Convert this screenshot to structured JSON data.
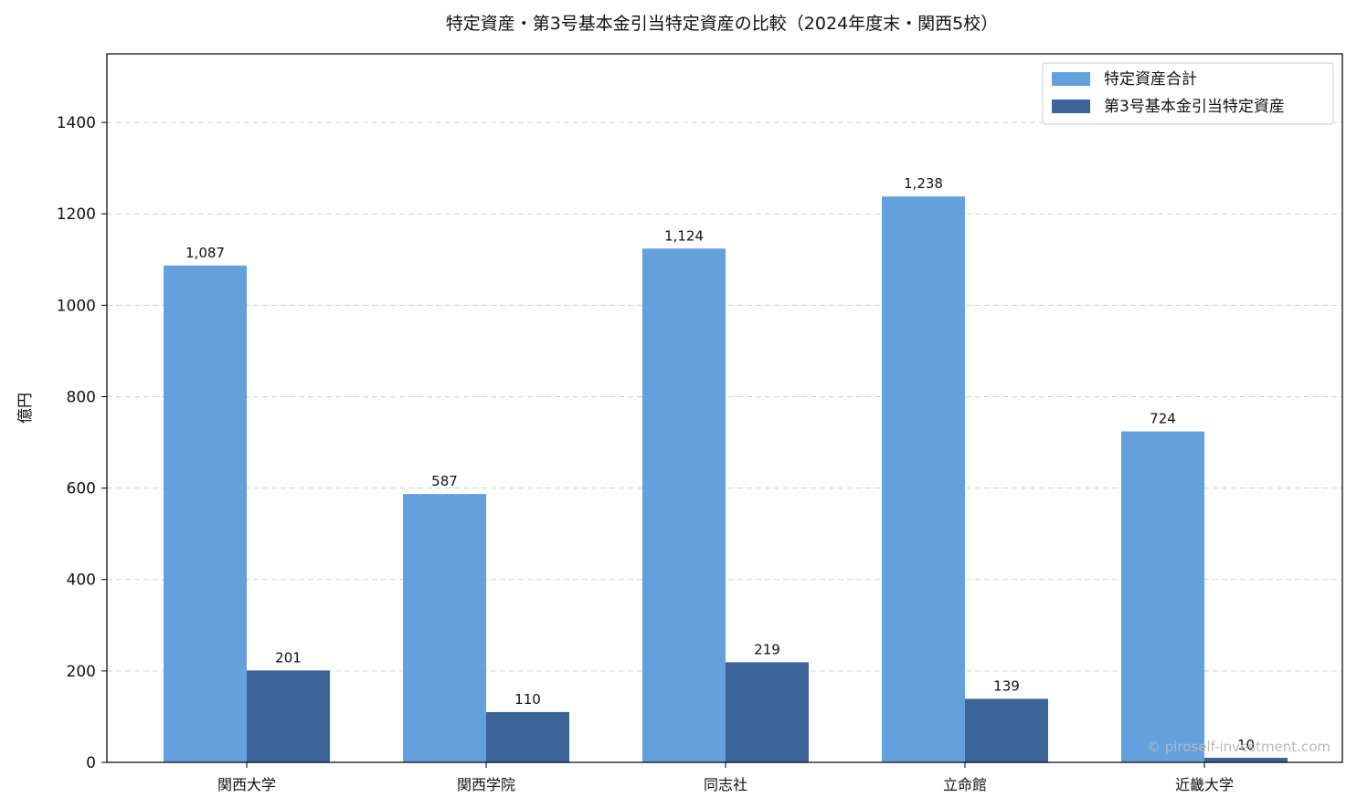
{
  "chart_data": {
    "type": "bar",
    "title": "特定資産・第3号基本金引当特定資産の比較（2024年度末・関西5校）",
    "xlabel": "",
    "ylabel": "億円",
    "ylim": [
      0,
      1550
    ],
    "yticks": [
      0,
      200,
      400,
      600,
      800,
      1000,
      1200,
      1400
    ],
    "grid": true,
    "legend_position": "top-right",
    "categories": [
      "関西大学",
      "関西学院",
      "同志社",
      "立命館",
      "近畿大学"
    ],
    "series": [
      {
        "name": "特定資産合計",
        "color": "#64a0de",
        "values": [
          1087,
          587,
          1124,
          1238,
          724
        ],
        "labels": [
          "1,087",
          "587",
          "1,124",
          "1,238",
          "724"
        ]
      },
      {
        "name": "第3号基本金引当特定資産",
        "color": "#3c6499",
        "values": [
          201,
          110,
          219,
          139,
          10
        ],
        "labels": [
          "201",
          "110",
          "219",
          "139",
          "10"
        ]
      }
    ],
    "watermark": "© piroself-investment.com"
  }
}
